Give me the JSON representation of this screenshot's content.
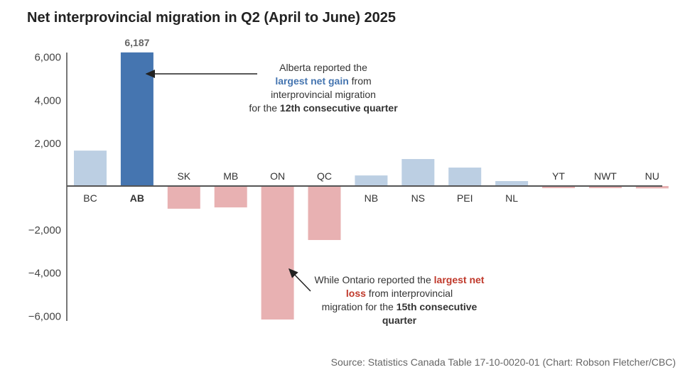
{
  "chart_data": {
    "type": "bar",
    "title": "Net interprovincial migration in Q2 (April to June) 2025",
    "xlabel": "",
    "ylabel": "",
    "ylim": [
      -6000,
      6000
    ],
    "yticks": [
      6000,
      4000,
      2000,
      -2000,
      -4000,
      -6000
    ],
    "ytick_labels": [
      "6,000",
      "4,000",
      "2,000",
      "−2,000",
      "−4,000",
      "−6,000"
    ],
    "categories": [
      "BC",
      "AB",
      "SK",
      "MB",
      "ON",
      "QC",
      "NB",
      "NS",
      "PEI",
      "NL",
      "YT",
      "NWT",
      "NU"
    ],
    "values": [
      1640,
      6187,
      -1050,
      -990,
      -6180,
      -2500,
      490,
      1250,
      855,
      230,
      -20,
      -20,
      -110
    ],
    "highlight": "AB",
    "data_labels": {
      "AB": "6,187"
    },
    "colors": {
      "positive": "#bccfe3",
      "negative": "#e8b1b2",
      "highlight": "#4575b0",
      "gain_text": "#4575b0",
      "loss_text": "#c0392b"
    },
    "annotations": [
      {
        "target": "AB",
        "segments": [
          {
            "text": "Alberta reported the",
            "style": "normal"
          },
          {
            "text": "largest net gain",
            "style": "gain"
          },
          {
            "text": " from",
            "style": "normal"
          },
          {
            "text": "interprovincial migration",
            "style": "normal"
          },
          {
            "text": "for the ",
            "style": "normal"
          },
          {
            "text": "12th consecutive quarter",
            "style": "bold"
          }
        ]
      },
      {
        "target": "ON",
        "segments": [
          {
            "text": "While Ontario reported the ",
            "style": "normal"
          },
          {
            "text": "largest net loss",
            "style": "loss"
          },
          {
            "text": " from interprovincial",
            "style": "normal"
          },
          {
            "text": "migration for the ",
            "style": "normal"
          },
          {
            "text": "15th consecutive quarter",
            "style": "bold"
          }
        ]
      }
    ]
  },
  "source": "Source: Statistics Canada Table 17-10-0020-01 (Chart: Robson Fletcher/CBC)"
}
